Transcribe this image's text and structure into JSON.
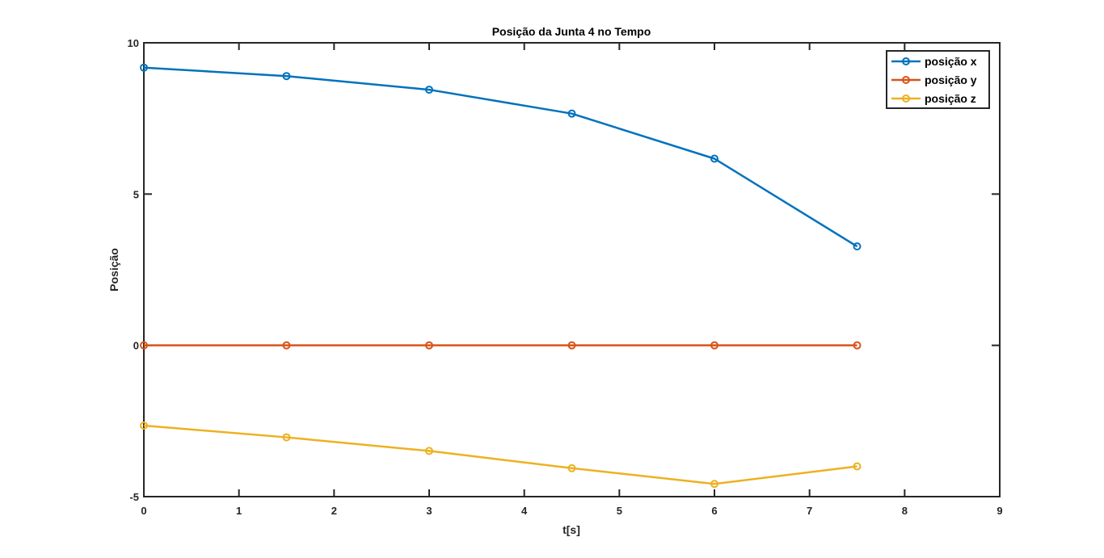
{
  "chart_data": {
    "type": "line",
    "title": "Posição da Junta 4 no Tempo",
    "xlabel": "t[s]",
    "ylabel": "Posição",
    "xlim": [
      0,
      9
    ],
    "ylim": [
      -5,
      10
    ],
    "x_ticks": [
      0,
      1,
      2,
      3,
      4,
      5,
      6,
      7,
      8,
      9
    ],
    "y_ticks": [
      -5,
      0,
      5,
      10
    ],
    "x_tick_labels": [
      "0",
      "1",
      "2",
      "3",
      "4",
      "5",
      "6",
      "7",
      "8",
      "9"
    ],
    "y_tick_labels": [
      "-5",
      "0",
      "5",
      "10"
    ],
    "grid": false,
    "legend_position": "top-right",
    "marker": "circle",
    "x": [
      0,
      1.5,
      3,
      4.5,
      6,
      7.5
    ],
    "series": [
      {
        "name": "posição x",
        "color": "#0072BD",
        "values": [
          9.18,
          8.9,
          8.45,
          7.66,
          6.17,
          3.27
        ]
      },
      {
        "name": "posição y",
        "color": "#D95319",
        "values": [
          0,
          0,
          0,
          0,
          0,
          0
        ]
      },
      {
        "name": "posição z",
        "color": "#EDB120",
        "values": [
          -2.65,
          -3.04,
          -3.49,
          -4.06,
          -4.58,
          -4.0
        ]
      }
    ]
  }
}
